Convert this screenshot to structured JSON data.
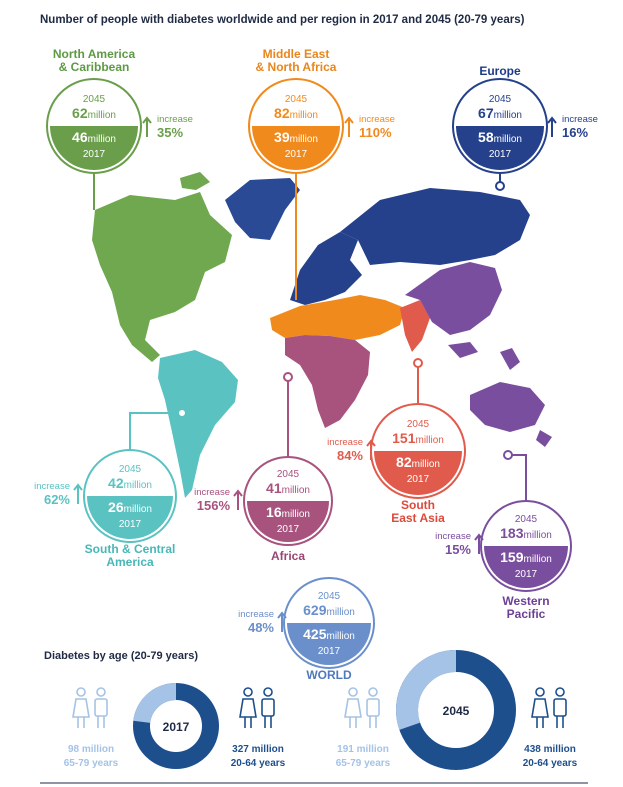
{
  "title": "Number of people with diabetes worldwide and per region in 2017 and 2045 (20-79 years)",
  "units_word": "million",
  "increase_word": "increase",
  "year_a": "2045",
  "year_b": "2017",
  "chart_data": [
    {
      "type": "proportional-circles",
      "title": "Number of people with diabetes worldwide and per region in 2017 and 2045 (20-79 years)",
      "categories": [
        "North America & Caribbean",
        "Middle East & North Africa",
        "Europe",
        "South & Central America",
        "Africa",
        "South East Asia",
        "Western Pacific",
        "WORLD"
      ],
      "series": [
        {
          "name": "2045",
          "values": [
            62,
            82,
            67,
            42,
            41,
            151,
            183,
            629
          ]
        },
        {
          "name": "2017",
          "values": [
            46,
            39,
            58,
            26,
            16,
            82,
            159,
            425
          ]
        }
      ],
      "increase_pct": [
        35,
        110,
        16,
        62,
        156,
        84,
        15,
        48
      ]
    },
    {
      "type": "pie",
      "title": "Diabetes by age (20-79 years)",
      "year": "2017",
      "labels": [
        "65-79 years",
        "20-64 years"
      ],
      "values": [
        98,
        327
      ]
    },
    {
      "type": "pie",
      "year": "2045",
      "labels": [
        "65-79 years",
        "20-64 years"
      ],
      "values": [
        191,
        438
      ]
    }
  ],
  "regions": [
    {
      "id": "nac",
      "name_lines": [
        "North America",
        "& Caribbean"
      ],
      "a": "62",
      "b": "46",
      "inc": "35%",
      "color": "#6a9e4b",
      "name_color": "#5d9a45"
    },
    {
      "id": "mena",
      "name_lines": [
        "Middle East",
        "& North Africa"
      ],
      "a": "82",
      "b": "39",
      "inc": "110%",
      "color": "#f18a1c",
      "name_color": "#e9861b"
    },
    {
      "id": "eur",
      "name_lines": [
        "Europe"
      ],
      "a": "67",
      "b": "58",
      "inc": "16%",
      "color": "#25418c",
      "name_color": "#1d3b85"
    },
    {
      "id": "sca",
      "name_lines": [
        "South & Central",
        "America"
      ],
      "a": "42",
      "b": "26",
      "inc": "62%",
      "color": "#5bc2c2",
      "name_color": "#48b7b7"
    },
    {
      "id": "afr",
      "name_lines": [
        "Africa"
      ],
      "a": "41",
      "b": "16",
      "inc": "156%",
      "color": "#a8527e",
      "name_color": "#9a4574"
    },
    {
      "id": "sea",
      "name_lines": [
        "South",
        "East Asia"
      ],
      "a": "151",
      "b": "82",
      "inc": "84%",
      "color": "#e15b4c",
      "name_color": "#dd4a3c"
    },
    {
      "id": "wp",
      "name_lines": [
        "Western",
        "Pacific"
      ],
      "a": "183",
      "b": "159",
      "inc": "15%",
      "color": "#7a4e9e",
      "name_color": "#6e3f96"
    },
    {
      "id": "world",
      "name_lines": [
        "WORLD"
      ],
      "a": "629",
      "b": "425",
      "inc": "48%",
      "color": "#6a8fcb",
      "name_color": "#4f78bd"
    }
  ],
  "age": {
    "title": "Diabetes by age (20-79 years)",
    "left": {
      "year": "2017",
      "old_value": "98 million",
      "old_label": "65-79 years",
      "young_value": "327 million",
      "young_label": "20-64 years"
    },
    "right": {
      "year": "2045",
      "old_value": "191 million",
      "old_label": "65-79 years",
      "young_value": "438 million",
      "young_label": "20-64 years"
    },
    "old_color": "#a5c3e6",
    "young_color": "#1d4f8c"
  }
}
